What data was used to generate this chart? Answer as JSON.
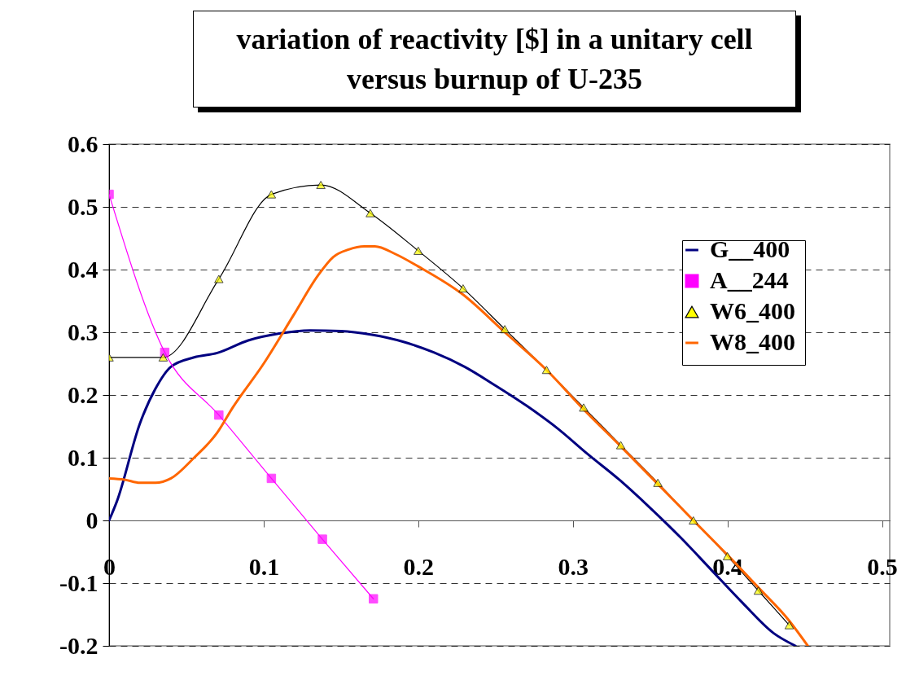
{
  "chart_data": {
    "type": "line",
    "title": "variation of reactivity [$] in a unitary cell versus burnup of U-235",
    "xlim": [
      0,
      0.505
    ],
    "xticks": [
      0,
      0.1,
      0.2,
      0.3,
      0.4,
      0.5
    ],
    "ylim": [
      -0.2,
      0.6
    ],
    "yticks": [
      -0.2,
      -0.1,
      0,
      0.1,
      0.2,
      0.3,
      0.4,
      0.5,
      0.6
    ],
    "grid": "y",
    "legend": "right",
    "series": [
      {
        "name": "G__400",
        "color": "#000080",
        "marker": "none",
        "x": [
          0,
          0.005,
          0.02,
          0.03,
          0.04,
          0.055,
          0.07,
          0.09,
          0.11,
          0.13,
          0.15,
          0.17,
          0.19,
          0.21,
          0.23,
          0.25,
          0.27,
          0.29,
          0.31,
          0.33,
          0.35,
          0.37,
          0.39,
          0.41,
          0.43,
          0.444
        ],
        "values": [
          0,
          0.03,
          0.155,
          0.21,
          0.245,
          0.26,
          0.267,
          0.287,
          0.298,
          0.303,
          0.302,
          0.296,
          0.285,
          0.268,
          0.245,
          0.215,
          0.183,
          0.147,
          0.105,
          0.065,
          0.02,
          -0.028,
          -0.08,
          -0.132,
          -0.18,
          -0.2
        ]
      },
      {
        "name": "A__244",
        "color": "#ff00ff",
        "marker": "square",
        "x": [
          0,
          0.036,
          0.071,
          0.105,
          0.138,
          0.171
        ],
        "values": [
          0.52,
          0.268,
          0.168,
          0.067,
          -0.03,
          -0.125
        ]
      },
      {
        "name": "W6_400",
        "color": "#000000",
        "marker": "triangle",
        "x": [
          0,
          0.035,
          0.071,
          0.105,
          0.137,
          0.169,
          0.2,
          0.229,
          0.256,
          0.283,
          0.307,
          0.331,
          0.355,
          0.378,
          0.4,
          0.42,
          0.44
        ],
        "values": [
          0.26,
          0.26,
          0.385,
          0.52,
          0.535,
          0.49,
          0.43,
          0.37,
          0.305,
          0.24,
          0.18,
          0.12,
          0.06,
          0,
          -0.057,
          -0.112,
          -0.167
        ]
      },
      {
        "name": "W8_400",
        "color": "#ff6600",
        "marker": "none",
        "x": [
          0,
          0.01,
          0.02,
          0.03,
          0.04,
          0.055,
          0.07,
          0.08,
          0.1,
          0.12,
          0.135,
          0.145,
          0.155,
          0.165,
          0.172,
          0.185,
          0.2,
          0.229,
          0.256,
          0.283,
          0.307,
          0.331,
          0.355,
          0.378,
          0.4,
          0.42,
          0.44,
          0.452
        ],
        "values": [
          0.067,
          0.065,
          0.06,
          0.06,
          0.067,
          0.1,
          0.14,
          0.18,
          0.25,
          0.33,
          0.39,
          0.42,
          0.432,
          0.437,
          0.437,
          0.425,
          0.405,
          0.36,
          0.3,
          0.24,
          0.177,
          0.118,
          0.058,
          0,
          -0.055,
          -0.107,
          -0.16,
          -0.2
        ]
      }
    ]
  }
}
